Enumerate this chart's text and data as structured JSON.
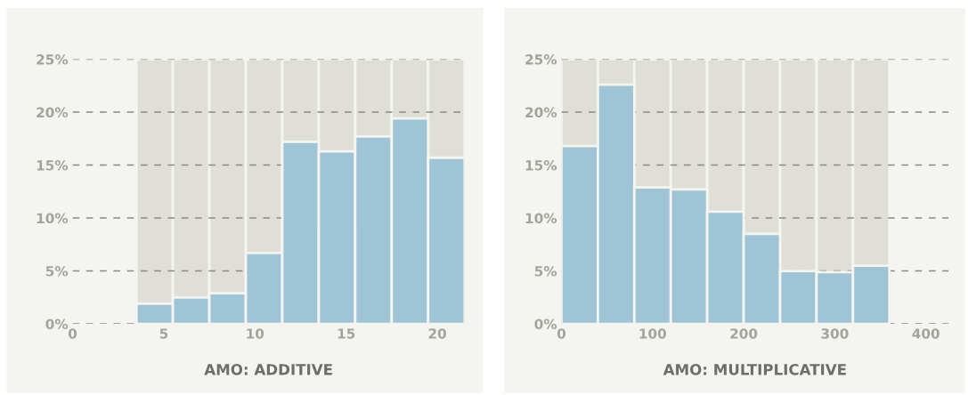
{
  "chart_data": [
    {
      "type": "histogram",
      "xlabel": "AMO: ADDITIVE",
      "color": "#9fc4d6",
      "bins": [
        3.5,
        5.5,
        7.5,
        9.5,
        11.5,
        13.5,
        15.5,
        17.5,
        19.5,
        21.5
      ],
      "values": [
        1.9,
        2.5,
        2.9,
        6.7,
        17.2,
        16.3,
        17.7,
        19.4,
        15.7
      ],
      "xlim": [
        0,
        21.5
      ],
      "xticks": [
        0,
        5,
        10,
        15,
        20
      ],
      "bands": [
        {
          "axis": "x",
          "from": 3.5,
          "to": 5.5,
          "color": "#e0dfd7"
        },
        {
          "axis": "x",
          "from": 5.5,
          "to": 7.5,
          "color": "#e0dfd7"
        },
        {
          "axis": "x",
          "from": 7.5,
          "to": 9.5,
          "color": "#e0dfd7"
        },
        {
          "axis": "x",
          "from": 9.5,
          "to": 11.5,
          "color": "#e0dfd7"
        },
        {
          "axis": "x",
          "from": 11.5,
          "to": 13.5,
          "color": "#e0dfd7"
        },
        {
          "axis": "x",
          "from": 13.5,
          "to": 15.5,
          "color": "#e0dfd7"
        },
        {
          "axis": "x",
          "from": 15.5,
          "to": 17.5,
          "color": "#e0dfd7"
        },
        {
          "axis": "x",
          "from": 17.5,
          "to": 19.5,
          "color": "#e0dfd7"
        },
        {
          "axis": "x",
          "from": 19.5,
          "to": 21.5,
          "color": "#e0dfd7"
        }
      ],
      "ylim": [
        0,
        25
      ],
      "yticks": [
        {
          "value": 0,
          "label": "0%"
        },
        {
          "value": 5,
          "label": "5%"
        },
        {
          "value": 10,
          "label": "10%"
        },
        {
          "value": 15,
          "label": "15%"
        },
        {
          "value": 20,
          "label": "20%"
        },
        {
          "value": 25,
          "label": "25%"
        }
      ],
      "grid": "y",
      "line_style": "dashed"
    },
    {
      "type": "histogram",
      "xlabel": "AMO: MULTIPLICATIVE",
      "color": "#9fc4d6",
      "bins": [
        0,
        40,
        80,
        120,
        160,
        200,
        240,
        280,
        320,
        360
      ],
      "values": [
        16.8,
        22.6,
        12.9,
        12.7,
        10.6,
        8.5,
        5.0,
        4.9,
        5.5
      ],
      "xlim": [
        0,
        425
      ],
      "xticks": [
        0,
        100,
        200,
        300,
        400
      ],
      "bands": [
        {
          "axis": "x",
          "from": 0,
          "to": 40,
          "color": "#e0dfd7"
        },
        {
          "axis": "x",
          "from": 40,
          "to": 80,
          "color": "#e0dfd7"
        },
        {
          "axis": "x",
          "from": 80,
          "to": 120,
          "color": "#e0dfd7"
        },
        {
          "axis": "x",
          "from": 120,
          "to": 160,
          "color": "#e0dfd7"
        },
        {
          "axis": "x",
          "from": 160,
          "to": 200,
          "color": "#e0dfd7"
        },
        {
          "axis": "x",
          "from": 200,
          "to": 240,
          "color": "#e0dfd7"
        },
        {
          "axis": "x",
          "from": 240,
          "to": 280,
          "color": "#e0dfd7"
        },
        {
          "axis": "x",
          "from": 280,
          "to": 320,
          "color": "#e0dfd7"
        },
        {
          "axis": "x",
          "from": 320,
          "to": 360,
          "color": "#e0dfd7"
        }
      ],
      "ylim": [
        0,
        25
      ],
      "yticks": [
        {
          "value": 0,
          "label": "0%"
        },
        {
          "value": 5,
          "label": "5%"
        },
        {
          "value": 10,
          "label": "10%"
        },
        {
          "value": 15,
          "label": "15%"
        },
        {
          "value": 20,
          "label": "20%"
        },
        {
          "value": 25,
          "label": "25%"
        }
      ],
      "grid": "y",
      "line_style": "dashed"
    }
  ]
}
